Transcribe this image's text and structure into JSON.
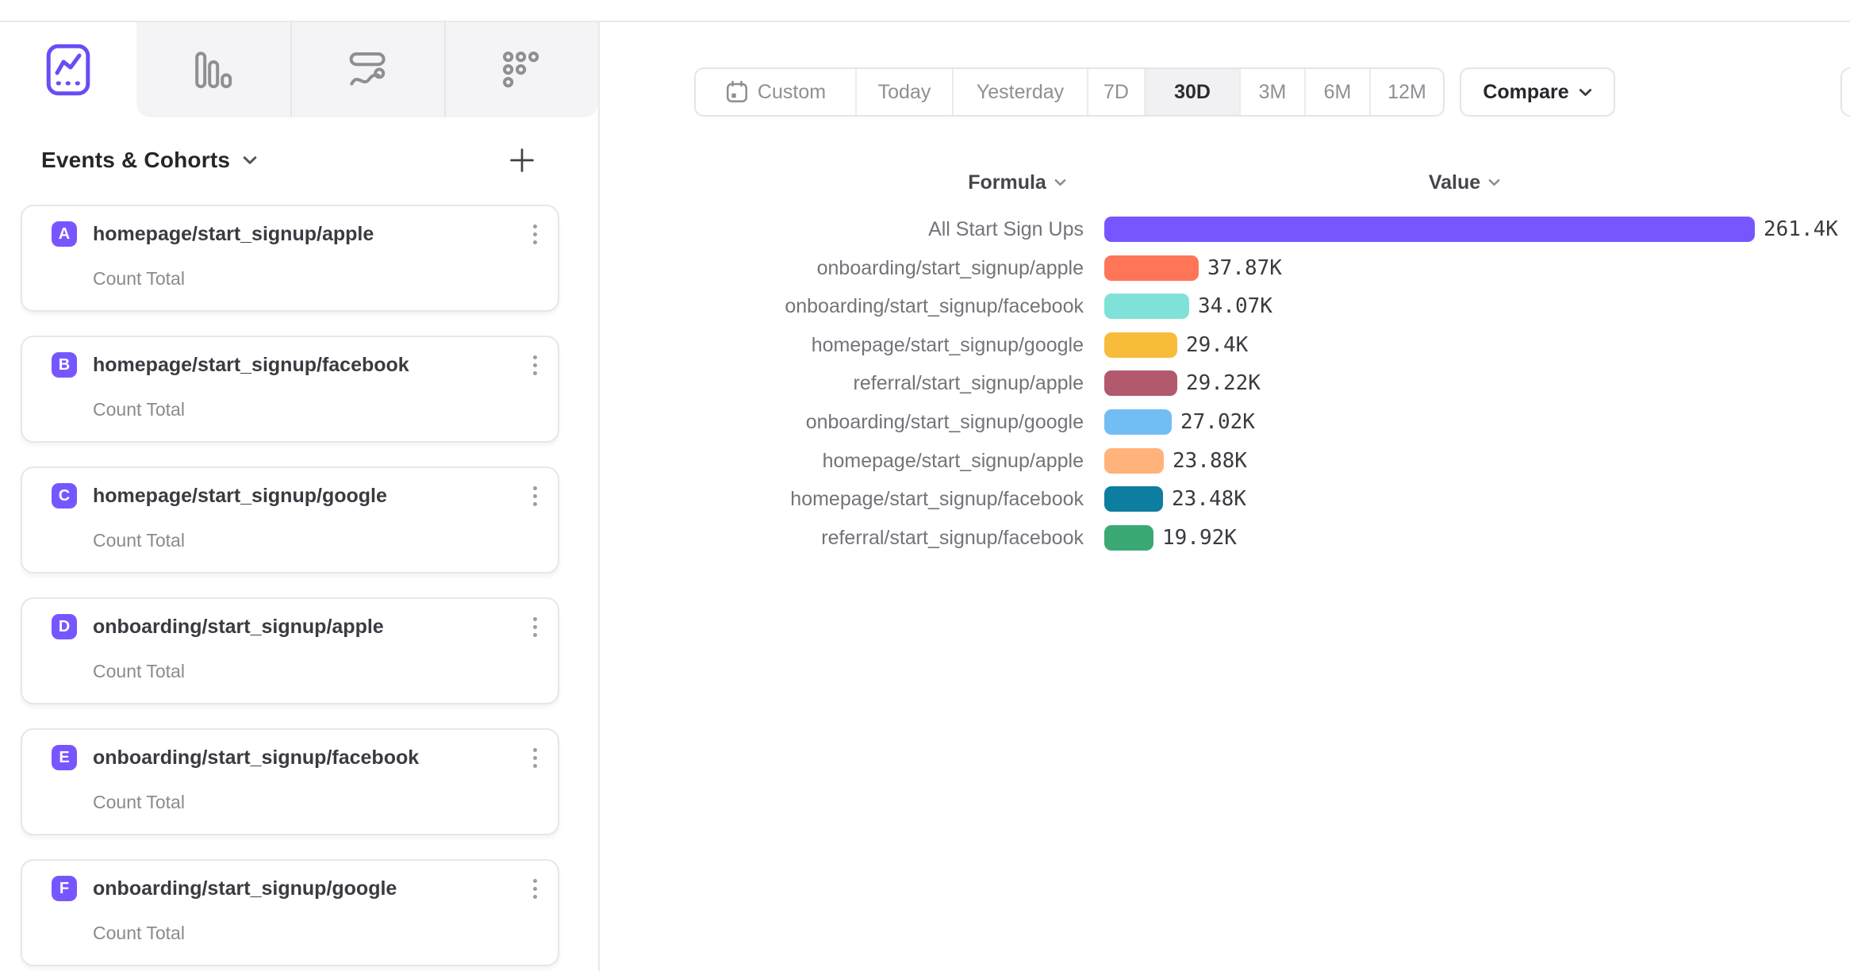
{
  "accent_color": "#7856ff",
  "chart_type_tabs": [
    {
      "name": "insights",
      "icon": "line-chart-icon",
      "active": true
    },
    {
      "name": "funnels",
      "icon": "bar-chart-icon",
      "active": false
    },
    {
      "name": "flows",
      "icon": "flows-icon",
      "active": false
    },
    {
      "name": "retention",
      "icon": "retention-dots-icon",
      "active": false
    }
  ],
  "sidebar": {
    "heading": "Events & Cohorts",
    "badge_color": "#7856ff",
    "events": [
      {
        "letter": "A",
        "name": "homepage/start_signup/apple",
        "metric": "Count Total"
      },
      {
        "letter": "B",
        "name": "homepage/start_signup/facebook",
        "metric": "Count Total"
      },
      {
        "letter": "C",
        "name": "homepage/start_signup/google",
        "metric": "Count Total"
      },
      {
        "letter": "D",
        "name": "onboarding/start_signup/apple",
        "metric": "Count Total"
      },
      {
        "letter": "E",
        "name": "onboarding/start_signup/facebook",
        "metric": "Count Total"
      },
      {
        "letter": "F",
        "name": "onboarding/start_signup/google",
        "metric": "Count Total"
      }
    ]
  },
  "date_range": {
    "segments": [
      {
        "label": "Custom",
        "icon": "calendar",
        "active": false
      },
      {
        "label": "Today",
        "active": false
      },
      {
        "label": "Yesterday",
        "active": false
      },
      {
        "label": "7D",
        "active": false
      },
      {
        "label": "30D",
        "active": true
      },
      {
        "label": "3M",
        "active": false
      },
      {
        "label": "6M",
        "active": false
      },
      {
        "label": "12M",
        "active": false
      }
    ],
    "compare_label": "Compare"
  },
  "chart_data": {
    "type": "bar",
    "orientation": "horizontal",
    "column_headers": [
      "Formula",
      "Value"
    ],
    "xlim": [
      0,
      261400
    ],
    "grid": false,
    "rows": [
      {
        "label": "All Start Sign Ups",
        "value": 261400,
        "value_label": "261.4K",
        "color": "#7856FF"
      },
      {
        "label": "onboarding/start_signup/apple",
        "value": 37870,
        "value_label": "37.87K",
        "color": "#FF7557"
      },
      {
        "label": "onboarding/start_signup/facebook",
        "value": 34070,
        "value_label": "34.07K",
        "color": "#80E1D9"
      },
      {
        "label": "homepage/start_signup/google",
        "value": 29400,
        "value_label": "29.4K",
        "color": "#F8BC3B"
      },
      {
        "label": "referral/start_signup/apple",
        "value": 29220,
        "value_label": "29.22K",
        "color": "#B2596E"
      },
      {
        "label": "onboarding/start_signup/google",
        "value": 27020,
        "value_label": "27.02K",
        "color": "#72BEF4"
      },
      {
        "label": "homepage/start_signup/apple",
        "value": 23880,
        "value_label": "23.88K",
        "color": "#FFB27A"
      },
      {
        "label": "homepage/start_signup/facebook",
        "value": 23480,
        "value_label": "23.48K",
        "color": "#0D7EA0"
      },
      {
        "label": "referral/start_signup/facebook",
        "value": 19920,
        "value_label": "19.92K",
        "color": "#3BA974"
      }
    ]
  }
}
